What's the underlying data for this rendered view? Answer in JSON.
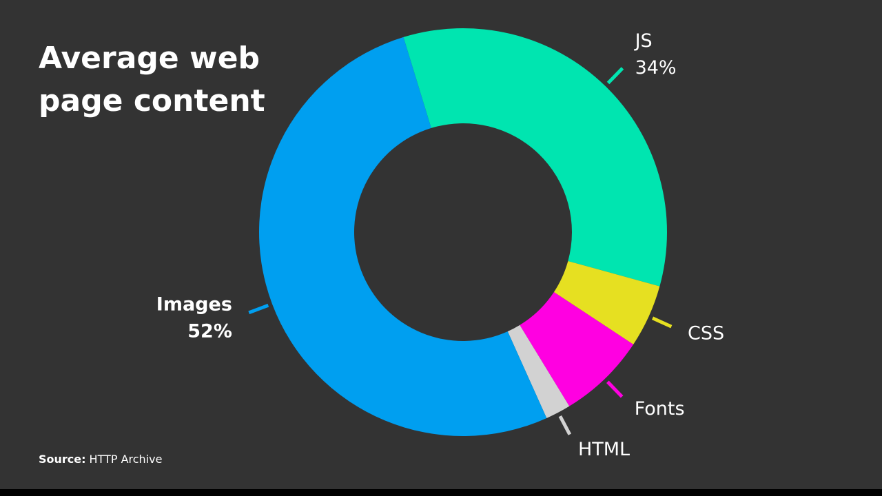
{
  "chart_data": {
    "type": "donut",
    "title": [
      "Average web",
      "page content"
    ],
    "categories": [
      "JS",
      "CSS",
      "Fonts",
      "HTML",
      "Images"
    ],
    "values": [
      34,
      5,
      7,
      2,
      52
    ],
    "value_labels": [
      "34%",
      null,
      null,
      null,
      "52%"
    ],
    "colors": [
      "#00e5b0",
      "#e6e021",
      "#ff00e1",
      "#d2d2d2",
      "#009ff0"
    ],
    "source_label": "Source:",
    "source": "HTTP Archive"
  }
}
